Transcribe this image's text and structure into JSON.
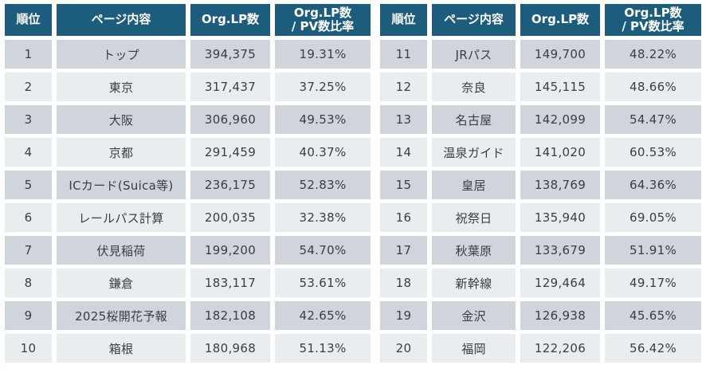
{
  "colors": {
    "header_bg": "#1c5d7d",
    "header_text": "#ffffff",
    "row_odd": "#d0d5db",
    "row_even": "#eaedf0",
    "body_text": "#3a3d42",
    "background": "#ffffff"
  },
  "columns": {
    "rank": "順位",
    "page": "ページ内容",
    "lp": "Org.LP数",
    "ratio_line1": "Org.LP数",
    "ratio_line2": "/ PV数比率"
  },
  "left_table": {
    "rows": [
      {
        "rank": "1",
        "page": "トップ",
        "lp": "394,375",
        "ratio": "19.31%"
      },
      {
        "rank": "2",
        "page": "東京",
        "lp": "317,437",
        "ratio": "37.25%"
      },
      {
        "rank": "3",
        "page": "大阪",
        "lp": "306,960",
        "ratio": "49.53%"
      },
      {
        "rank": "4",
        "page": "京都",
        "lp": "291,459",
        "ratio": "40.37%"
      },
      {
        "rank": "5",
        "page": "ICカード(Suica等)",
        "lp": "236,175",
        "ratio": "52.83%"
      },
      {
        "rank": "6",
        "page": "レールパス計算",
        "lp": "200,035",
        "ratio": "32.38%"
      },
      {
        "rank": "7",
        "page": "伏見稲荷",
        "lp": "199,200",
        "ratio": "54.70%"
      },
      {
        "rank": "8",
        "page": "鎌倉",
        "lp": "183,117",
        "ratio": "53.61%"
      },
      {
        "rank": "9",
        "page": "2025桜開花予報",
        "lp": "182,108",
        "ratio": "42.65%"
      },
      {
        "rank": "10",
        "page": "箱根",
        "lp": "180,968",
        "ratio": "51.13%"
      }
    ]
  },
  "right_table": {
    "rows": [
      {
        "rank": "11",
        "page": "JRパス",
        "lp": "149,700",
        "ratio": "48.22%"
      },
      {
        "rank": "12",
        "page": "奈良",
        "lp": "145,115",
        "ratio": "48.66%"
      },
      {
        "rank": "13",
        "page": "名古屋",
        "lp": "142,099",
        "ratio": "54.47%"
      },
      {
        "rank": "14",
        "page": "温泉ガイド",
        "lp": "141,020",
        "ratio": "60.53%"
      },
      {
        "rank": "15",
        "page": "皇居",
        "lp": "138,769",
        "ratio": "64.36%"
      },
      {
        "rank": "16",
        "page": "祝祭日",
        "lp": "135,940",
        "ratio": "69.05%"
      },
      {
        "rank": "17",
        "page": "秋葉原",
        "lp": "133,679",
        "ratio": "51.91%"
      },
      {
        "rank": "18",
        "page": "新幹線",
        "lp": "129,464",
        "ratio": "49.17%"
      },
      {
        "rank": "19",
        "page": "金沢",
        "lp": "126,938",
        "ratio": "45.65%"
      },
      {
        "rank": "20",
        "page": "福岡",
        "lp": "122,206",
        "ratio": "56.42%"
      }
    ]
  },
  "chart_data": {
    "type": "table",
    "title": "",
    "columns": [
      "順位",
      "ページ内容",
      "Org.LP数",
      "Org.LP数 / PV数比率"
    ],
    "rows": [
      [
        1,
        "トップ",
        394375,
        "19.31%"
      ],
      [
        2,
        "東京",
        317437,
        "37.25%"
      ],
      [
        3,
        "大阪",
        306960,
        "49.53%"
      ],
      [
        4,
        "京都",
        291459,
        "40.37%"
      ],
      [
        5,
        "ICカード(Suica等)",
        236175,
        "52.83%"
      ],
      [
        6,
        "レールパス計算",
        200035,
        "32.38%"
      ],
      [
        7,
        "伏見稲荷",
        199200,
        "54.70%"
      ],
      [
        8,
        "鎌倉",
        183117,
        "53.61%"
      ],
      [
        9,
        "2025桜開花予報",
        182108,
        "42.65%"
      ],
      [
        10,
        "箱根",
        180968,
        "51.13%"
      ],
      [
        11,
        "JRパス",
        149700,
        "48.22%"
      ],
      [
        12,
        "奈良",
        145115,
        "48.66%"
      ],
      [
        13,
        "名古屋",
        142099,
        "54.47%"
      ],
      [
        14,
        "温泉ガイド",
        141020,
        "60.53%"
      ],
      [
        15,
        "皇居",
        138769,
        "64.36%"
      ],
      [
        16,
        "祝祭日",
        135940,
        "69.05%"
      ],
      [
        17,
        "秋葉原",
        133679,
        "51.91%"
      ],
      [
        18,
        "新幹線",
        129464,
        "49.17%"
      ],
      [
        19,
        "金沢",
        126938,
        "45.65%"
      ],
      [
        20,
        "福岡",
        122206,
        "56.42%"
      ]
    ]
  }
}
